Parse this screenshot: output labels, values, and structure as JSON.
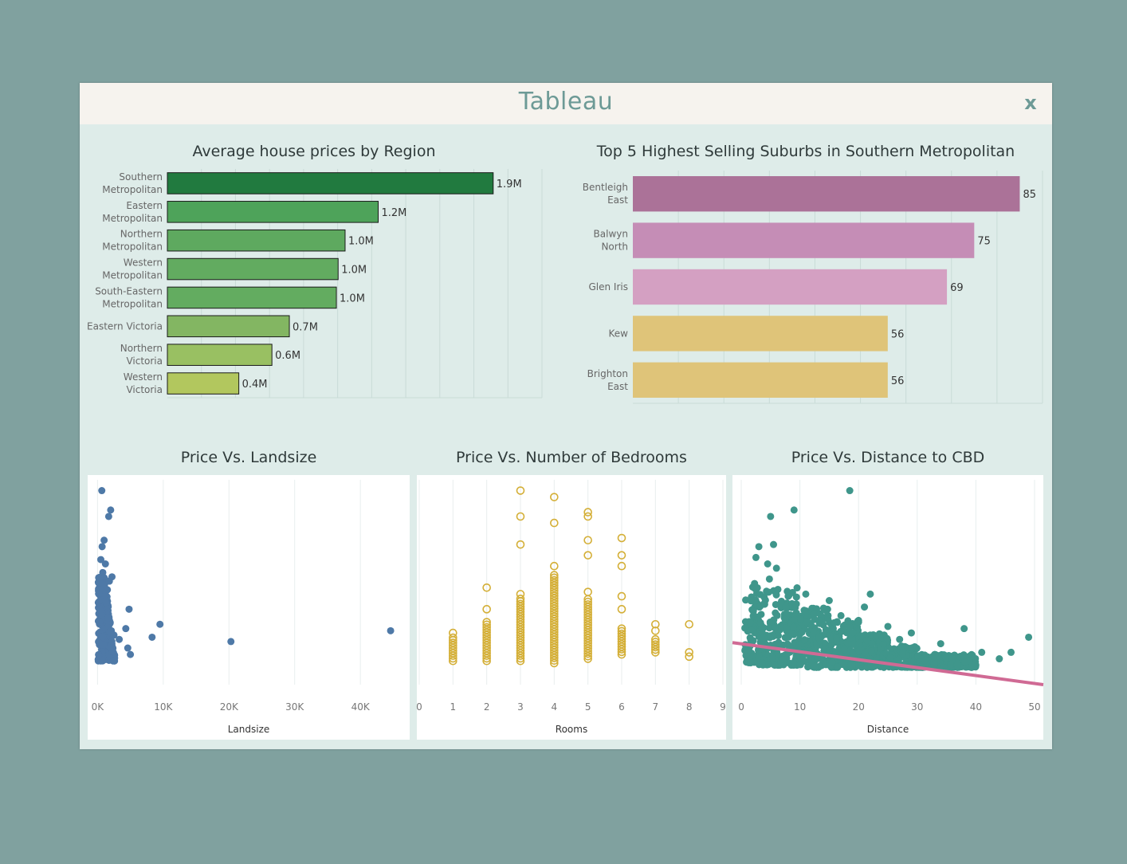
{
  "window": {
    "title": "Tableau",
    "close_label": "x"
  },
  "chart_data": [
    {
      "type": "bar",
      "id": "region",
      "title": "Average house prices by Region",
      "orientation": "horizontal",
      "categories": [
        [
          "Southern",
          "Metropolitan"
        ],
        [
          "Eastern",
          "Metropolitan"
        ],
        [
          "Northern",
          "Metropolitan"
        ],
        [
          "Western",
          "Metropolitan"
        ],
        [
          "South-Eastern",
          "Metropolitan"
        ],
        [
          "Eastern Victoria"
        ],
        [
          "Northern",
          "Victoria"
        ],
        [
          "Western",
          "Victoria"
        ]
      ],
      "values": [
        1.87,
        1.21,
        1.02,
        0.98,
        0.97,
        0.7,
        0.6,
        0.41
      ],
      "labels": [
        "1.9M",
        "1.2M",
        "1.0M",
        "1.0M",
        "1.0M",
        "0.7M",
        "0.6M",
        "0.4M"
      ],
      "colors": [
        "#217a3f",
        "#4ea35a",
        "#5ea95f",
        "#62ab60",
        "#63ac60",
        "#83b662",
        "#99c062",
        "#b2c75e"
      ],
      "xlim": [
        0,
        2.15
      ]
    },
    {
      "type": "bar",
      "id": "suburbs",
      "title": "Top 5 Highest Selling Suburbs in Southern Metropolitan",
      "orientation": "horizontal",
      "categories": [
        [
          "Bentleigh",
          "East"
        ],
        [
          "Balwyn",
          "North"
        ],
        [
          "Glen Iris"
        ],
        [
          "Kew"
        ],
        [
          "Brighton",
          "East"
        ]
      ],
      "values": [
        85,
        75,
        69,
        56,
        56
      ],
      "labels": [
        "85",
        "75",
        "69",
        "56",
        "56"
      ],
      "colors": [
        "#ab7298",
        "#c58db6",
        "#d4a0c2",
        "#dfc479",
        "#dfc479"
      ],
      "xlim": [
        0,
        90
      ]
    },
    {
      "type": "scatter",
      "id": "landsize",
      "title": "Price Vs. Landsize",
      "xlabel": "Landsize",
      "xticks": [
        0,
        10000,
        20000,
        30000,
        40000
      ],
      "xtick_labels": [
        "0K",
        "10K",
        "20K",
        "30K",
        "40K"
      ],
      "xlim": [
        -1500,
        47500
      ],
      "ylim": [
        0,
        9.5
      ],
      "color": "#4e79a7",
      "points": [
        [
          650,
          9.0
        ],
        [
          2000,
          8.1
        ],
        [
          1700,
          7.8
        ],
        [
          1000,
          6.7
        ],
        [
          700,
          6.4
        ],
        [
          500,
          5.8
        ],
        [
          1200,
          5.6
        ],
        [
          2200,
          5.0
        ],
        [
          1800,
          4.8
        ],
        [
          4800,
          3.5
        ],
        [
          4300,
          2.6
        ],
        [
          9500,
          2.8
        ],
        [
          2100,
          2.5
        ],
        [
          8300,
          2.2
        ],
        [
          3300,
          2.1
        ],
        [
          4600,
          1.7
        ],
        [
          5000,
          1.4
        ],
        [
          20300,
          2.0
        ],
        [
          44600,
          2.5
        ],
        [
          800,
          5.2
        ],
        [
          1500,
          4.4
        ],
        [
          1200,
          3.9
        ],
        [
          700,
          3.2
        ],
        [
          300,
          2.9
        ],
        [
          1600,
          3.1
        ],
        [
          2500,
          2.3
        ]
      ],
      "cluster": {
        "x": [
          100,
          2800
        ],
        "y": [
          1.1,
          5.0
        ]
      }
    },
    {
      "type": "scatter",
      "id": "bedrooms",
      "title": "Price Vs. Number of Bedrooms",
      "xlabel": "Rooms",
      "xticks": [
        0,
        1,
        2,
        3,
        4,
        5,
        6,
        7,
        8,
        9
      ],
      "xtick_labels": [
        "0",
        "1",
        "2",
        "3",
        "4",
        "5",
        "6",
        "7",
        "8",
        "9"
      ],
      "xlim": [
        0,
        9
      ],
      "ylim": [
        0,
        9.5
      ],
      "color": "#d4af37",
      "columns": [
        {
          "x": 1,
          "low": 1.1,
          "high": 2.2,
          "outliers": [
            2.4
          ]
        },
        {
          "x": 2,
          "low": 1.1,
          "high": 3.0,
          "outliers": [
            3.5,
            4.5
          ]
        },
        {
          "x": 3,
          "low": 1.1,
          "high": 4.0,
          "outliers": [
            4.2,
            6.5,
            7.8,
            9.0
          ]
        },
        {
          "x": 4,
          "low": 1.0,
          "high": 5.1,
          "outliers": [
            5.5,
            7.5,
            8.7
          ]
        },
        {
          "x": 5,
          "low": 1.2,
          "high": 4.0,
          "outliers": [
            4.3,
            6.0,
            6.7,
            7.8,
            8.0
          ]
        },
        {
          "x": 6,
          "low": 1.4,
          "high": 2.7,
          "outliers": [
            3.5,
            4.1,
            5.5,
            6.0,
            6.8
          ]
        },
        {
          "x": 7,
          "low": 1.5,
          "high": 2.1,
          "outliers": [
            2.5,
            2.8
          ]
        },
        {
          "x": 8,
          "low": 1.3,
          "high": 1.3,
          "outliers": [
            1.5,
            2.8
          ]
        }
      ]
    },
    {
      "type": "scatter",
      "id": "distance",
      "title": "Price Vs. Distance to CBD",
      "xlabel": "Distance",
      "xticks": [
        0,
        10,
        20,
        30,
        40,
        50
      ],
      "xtick_labels": [
        "0",
        "10",
        "20",
        "30",
        "40",
        "50"
      ],
      "xlim": [
        -1.5,
        51.5
      ],
      "ylim": [
        0,
        9.5
      ],
      "color": "#3f968b",
      "trend_color": "#d06a94",
      "trend": [
        [
          -1.5,
          1.95
        ],
        [
          51.5,
          0.0
        ]
      ],
      "points": [
        [
          18.5,
          9.0
        ],
        [
          9,
          8.1
        ],
        [
          5,
          7.8
        ],
        [
          3,
          6.4
        ],
        [
          5.5,
          6.5
        ],
        [
          2.5,
          5.9
        ],
        [
          4.5,
          5.6
        ],
        [
          6,
          5.4
        ],
        [
          4.8,
          4.9
        ],
        [
          11,
          4.2
        ],
        [
          8,
          4.1
        ],
        [
          15,
          3.9
        ],
        [
          22,
          4.2
        ],
        [
          21,
          3.6
        ],
        [
          17,
          3.2
        ],
        [
          20,
          2.9
        ],
        [
          25,
          2.7
        ],
        [
          27,
          2.1
        ],
        [
          29,
          2.4
        ],
        [
          34,
          1.9
        ],
        [
          38,
          2.6
        ],
        [
          41,
          1.5
        ],
        [
          46,
          1.5
        ],
        [
          49,
          2.2
        ],
        [
          33,
          1.4
        ],
        [
          36,
          1.2
        ],
        [
          44,
          1.2
        ]
      ],
      "cluster": [
        {
          "x": [
            0.5,
            3
          ],
          "y": [
            1.0,
            4.8
          ]
        },
        {
          "x": [
            3,
            10
          ],
          "y": [
            0.9,
            4.5
          ]
        },
        {
          "x": [
            10,
            15
          ],
          "y": [
            0.8,
            3.6
          ]
        },
        {
          "x": [
            15,
            20
          ],
          "y": [
            0.8,
            3.0
          ]
        },
        {
          "x": [
            20,
            25
          ],
          "y": [
            0.8,
            2.4
          ]
        },
        {
          "x": [
            25,
            30
          ],
          "y": [
            0.8,
            1.8
          ]
        },
        {
          "x": [
            30,
            40
          ],
          "y": [
            0.8,
            1.4
          ]
        }
      ]
    }
  ]
}
